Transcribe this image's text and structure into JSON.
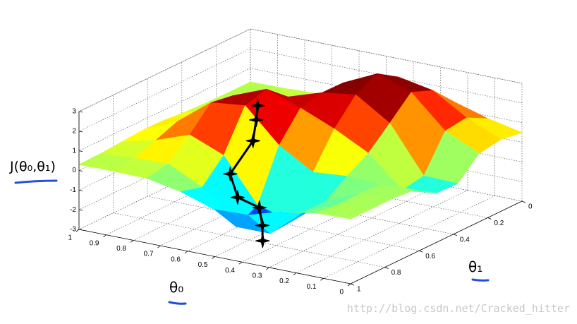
{
  "chart_data": {
    "type": "surface",
    "xlabel": "θ₀",
    "ylabel": "θ₁",
    "zlabel": "J(θ₀,θ₁)",
    "colormap": "jet",
    "grid": true,
    "x": [
      0,
      0.125,
      0.25,
      0.375,
      0.5,
      0.625,
      0.75,
      0.875,
      1
    ],
    "y": [
      0,
      0.125,
      0.25,
      0.375,
      0.5,
      0.625,
      0.75,
      0.875,
      1
    ],
    "z": [
      [
        0.49,
        0.66,
        0.48,
        -0.53,
        -0.48,
        0.2,
        0.31,
        0.3,
        0.3
      ],
      [
        0.86,
        1.42,
        1.27,
        -0.49,
        -0.69,
        0.14,
        0.18,
        0.17,
        0.25
      ],
      [
        1.36,
        2.47,
        2.9,
        1.85,
        0.85,
        0.2,
        -0.54,
        -0.54,
        -0.01
      ],
      [
        1.51,
        2.8,
        3.5,
        2.95,
        1.74,
        0.06,
        -1.91,
        -1.99,
        -0.55
      ],
      [
        1.16,
        2.09,
        2.69,
        2.71,
        2.46,
        1.08,
        -1.46,
        -2.0,
        -0.61
      ],
      [
        0.68,
        1.11,
        1.53,
        2.15,
        3.07,
        2.76,
        0.75,
        -0.35,
        -0.04
      ],
      [
        0.4,
        0.53,
        0.75,
        1.38,
        2.39,
        2.57,
        1.45,
        0.5,
        0.29
      ],
      [
        0.32,
        0.35,
        0.42,
        0.69,
        1.14,
        1.25,
        0.83,
        0.45,
        0.32
      ],
      [
        0.3,
        0.3,
        0.32,
        0.37,
        0.47,
        0.49,
        0.41,
        0.33,
        0.3
      ]
    ],
    "xlim": [
      0,
      1
    ],
    "ylim": [
      0,
      1
    ],
    "zlim": [
      -3,
      3
    ],
    "xticks": [
      0,
      0.1,
      0.2,
      0.3,
      0.4,
      0.5,
      0.6,
      0.7,
      0.8,
      0.9,
      1
    ],
    "yticks": [
      0,
      0.2,
      0.4,
      0.6,
      0.8,
      1
    ],
    "zticks": [
      -3,
      -2,
      -1,
      0,
      1,
      2,
      3
    ],
    "path": {
      "color": "#000000",
      "x": [
        0.62,
        0.6,
        0.58,
        0.62,
        0.58,
        0.5,
        0.47,
        0.45
      ],
      "y": [
        0.56,
        0.6,
        0.65,
        0.72,
        0.74,
        0.74,
        0.77,
        0.8
      ],
      "z": [
        2.5,
        2.0,
        1.2,
        -0.3,
        -1.3,
        -1.6,
        -2.3,
        -2.9
      ]
    }
  },
  "watermark": "http://blog.csdn.net/Cracked_hitter"
}
